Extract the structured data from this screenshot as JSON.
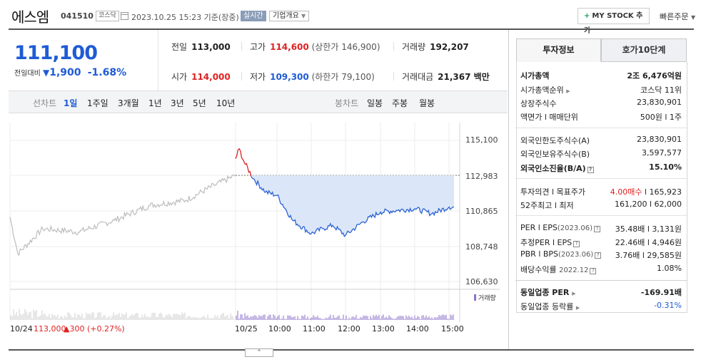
{
  "header": {
    "name": "에스엠",
    "code": "041510",
    "market": "코스닥",
    "datetime": "2023.10.25 15:23 기준(장중)",
    "realtime": "실시간",
    "company_info": "기업개요",
    "mystock": "MY STOCK 추가",
    "quick_order": "빠른주문"
  },
  "price": {
    "current": "111,100",
    "change_label": "전일대비",
    "change": "1,900",
    "change_pct": "-1.68%"
  },
  "summary": {
    "prev_label": "전일",
    "prev": "113,000",
    "high_label": "고가",
    "high": "114,600",
    "upper_limit": "(상한가 146,900)",
    "volume_label": "거래량",
    "volume": "192,207",
    "open_label": "시가",
    "open": "114,000",
    "low_label": "저가",
    "low": "109,300",
    "lower_limit": "(하한가 79,100)",
    "amount_label": "거래대금",
    "amount": "21,367 백만"
  },
  "period_tabs": {
    "line_label": "선차트",
    "items": [
      "1일",
      "1주일",
      "3개월",
      "1년",
      "3년",
      "5년",
      "10년"
    ],
    "selected": "1일",
    "candle_label": "봉차트",
    "candle_items": [
      "일봉",
      "주봉",
      "월봉"
    ]
  },
  "chart_data": {
    "type": "line",
    "y_ticks": [
      "115,100",
      "112,983",
      "110,865",
      "108,748",
      "106,630"
    ],
    "ylim": [
      106630,
      115100
    ],
    "x_ticks": [
      "10/24",
      "10/25",
      "10:00",
      "11:00",
      "12:00",
      "13:00",
      "14:00",
      "15:00"
    ],
    "reference_line": 113000,
    "volume_legend": "거래량",
    "prev_day_summary": {
      "date": "10/24",
      "close": "113,000",
      "change": "▲300 (+0.27%)"
    },
    "series": [
      {
        "name": "",
        "x": [
          "10/24",
          "10/24 09:30",
          "10/24 10:00",
          "10/24 11:00",
          "10/24 12:00",
          "10/24 13:00",
          "10/24 14:00",
          "10/24 15:00",
          "10/24 15:30"
        ],
        "values": [
          110500,
          108300,
          109800,
          109600,
          110300,
          111200,
          111500,
          112400,
          113000
        ]
      },
      {
        "name": "",
        "x": [
          "09:00",
          "09:05",
          "09:10",
          "09:20",
          "09:40",
          "10:00",
          "10:30",
          "11:00",
          "11:20",
          "11:40",
          "12:00",
          "12:30",
          "13:00",
          "13:30",
          "14:00",
          "14:30",
          "15:00",
          "15:23"
        ],
        "values": [
          114000,
          114600,
          113800,
          112800,
          112000,
          111800,
          110300,
          109500,
          109800,
          110000,
          109400,
          110200,
          110800,
          110900,
          111000,
          110700,
          111100,
          111100
        ]
      }
    ]
  },
  "invest_panel": {
    "tab_info": "투자정보",
    "tab_orderbook": "호가10단계",
    "market_cap_label": "시가총액",
    "market_cap": "2조 6,476억원",
    "rank_label": "시가총액순위",
    "rank": "코스닥 11위",
    "shares_label": "상장주식수",
    "shares": "23,830,901",
    "par_label": "액면가 l 매매단위",
    "par": "500원 l 1주",
    "foreign_limit_label": "외국인한도주식수(A)",
    "foreign_limit": "23,830,901",
    "foreign_hold_label": "외국인보유주식수(B)",
    "foreign_hold": "3,597,577",
    "foreign_ratio_label": "외국인소진율(B/A)",
    "foreign_ratio": "15.10%",
    "opinion_label": "투자의견 l 목표주가",
    "opinion": "4.00매수",
    "target": "165,923",
    "w52_label": "52주최고 l 최저",
    "w52": "161,200 l 62,000",
    "per_label": "PER l EPS",
    "per_year": "(2023.06)",
    "per": "35.48배 l 3,131원",
    "est_per_label": "추정PER l EPS",
    "est_per": "22.46배 l 4,946원",
    "pbr_label": "PBR l BPS",
    "pbr_year": "(2023.06)",
    "pbr": "3.76배 l 29,585원",
    "div_label": "배당수익률",
    "div_year": "2022.12",
    "div": "1.08%",
    "sector_per_label": "동일업종 PER",
    "sector_per": "-169.91배",
    "sector_chg_label": "동일업종 등락률",
    "sector_chg": "-0.31%"
  }
}
